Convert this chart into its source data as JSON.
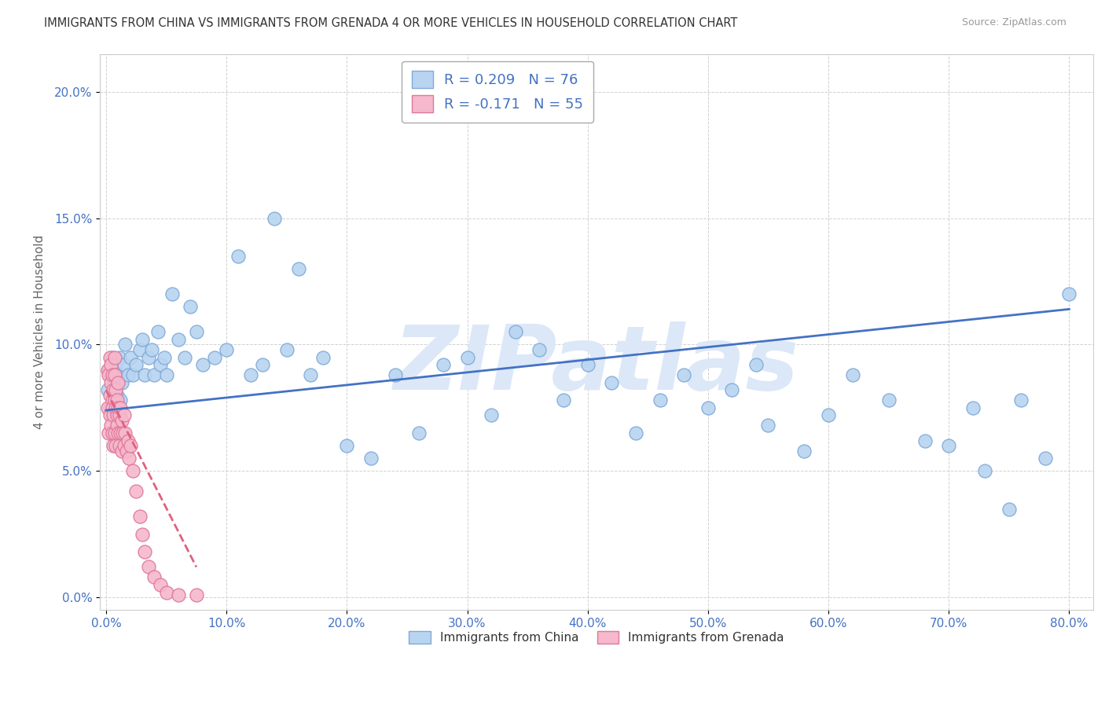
{
  "title": "IMMIGRANTS FROM CHINA VS IMMIGRANTS FROM GRENADA 4 OR MORE VEHICLES IN HOUSEHOLD CORRELATION CHART",
  "source": "Source: ZipAtlas.com",
  "ylabel": "4 or more Vehicles in Household",
  "legend_china": "Immigrants from China",
  "legend_grenada": "Immigrants from Grenada",
  "R_china": 0.209,
  "N_china": 76,
  "R_grenada": -0.171,
  "N_grenada": 55,
  "china_color": "#b8d4f0",
  "china_edge": "#80aad8",
  "grenada_color": "#f5b8cc",
  "grenada_edge": "#e0789a",
  "line_china_color": "#4472c4",
  "line_grenada_color": "#e06080",
  "xlim_min": -0.005,
  "xlim_max": 0.82,
  "ylim_min": -0.005,
  "ylim_max": 0.215,
  "xticks": [
    0.0,
    0.1,
    0.2,
    0.3,
    0.4,
    0.5,
    0.6,
    0.7,
    0.8
  ],
  "yticks": [
    0.0,
    0.05,
    0.1,
    0.15,
    0.2
  ],
  "xticklabels": [
    "0.0%",
    "10.0%",
    "20.0%",
    "30.0%",
    "40.0%",
    "50.0%",
    "60.0%",
    "70.0%",
    "80.0%"
  ],
  "yticklabels": [
    "0.0%",
    "5.0%",
    "10.0%",
    "15.0%",
    "20.0%"
  ],
  "china_line_x0": 0.0,
  "china_line_y0": 0.074,
  "china_line_x1": 0.8,
  "china_line_y1": 0.114,
  "grenada_line_x0": 0.0,
  "grenada_line_y0": 0.082,
  "grenada_line_x1": 0.075,
  "grenada_line_y1": 0.012,
  "watermark": "ZIPatlas",
  "watermark_color": "#dce8f8",
  "background_color": "#ffffff",
  "grid_color": "#cccccc",
  "china_scatter_x": [
    0.001,
    0.002,
    0.003,
    0.004,
    0.005,
    0.006,
    0.007,
    0.008,
    0.009,
    0.01,
    0.011,
    0.012,
    0.013,
    0.015,
    0.016,
    0.018,
    0.02,
    0.022,
    0.025,
    0.028,
    0.03,
    0.032,
    0.035,
    0.038,
    0.04,
    0.043,
    0.045,
    0.048,
    0.05,
    0.055,
    0.06,
    0.065,
    0.07,
    0.075,
    0.08,
    0.09,
    0.1,
    0.11,
    0.12,
    0.13,
    0.14,
    0.15,
    0.16,
    0.17,
    0.18,
    0.2,
    0.22,
    0.24,
    0.26,
    0.28,
    0.3,
    0.32,
    0.34,
    0.36,
    0.38,
    0.4,
    0.42,
    0.44,
    0.46,
    0.48,
    0.5,
    0.52,
    0.54,
    0.55,
    0.58,
    0.6,
    0.62,
    0.65,
    0.68,
    0.7,
    0.72,
    0.73,
    0.75,
    0.76,
    0.78,
    0.8
  ],
  "china_scatter_y": [
    0.082,
    0.09,
    0.075,
    0.088,
    0.095,
    0.078,
    0.085,
    0.092,
    0.08,
    0.088,
    0.095,
    0.078,
    0.085,
    0.092,
    0.1,
    0.088,
    0.095,
    0.088,
    0.092,
    0.098,
    0.102,
    0.088,
    0.095,
    0.098,
    0.088,
    0.105,
    0.092,
    0.095,
    0.088,
    0.12,
    0.102,
    0.095,
    0.115,
    0.105,
    0.092,
    0.095,
    0.098,
    0.135,
    0.088,
    0.092,
    0.15,
    0.098,
    0.13,
    0.088,
    0.095,
    0.06,
    0.055,
    0.088,
    0.065,
    0.092,
    0.095,
    0.072,
    0.105,
    0.098,
    0.078,
    0.092,
    0.085,
    0.065,
    0.078,
    0.088,
    0.075,
    0.082,
    0.092,
    0.068,
    0.058,
    0.072,
    0.088,
    0.078,
    0.062,
    0.06,
    0.075,
    0.05,
    0.035,
    0.078,
    0.055,
    0.12
  ],
  "grenada_scatter_x": [
    0.001,
    0.001,
    0.002,
    0.002,
    0.003,
    0.003,
    0.003,
    0.004,
    0.004,
    0.004,
    0.005,
    0.005,
    0.005,
    0.005,
    0.006,
    0.006,
    0.006,
    0.007,
    0.007,
    0.007,
    0.007,
    0.008,
    0.008,
    0.008,
    0.009,
    0.009,
    0.009,
    0.01,
    0.01,
    0.01,
    0.011,
    0.011,
    0.012,
    0.012,
    0.013,
    0.013,
    0.014,
    0.015,
    0.015,
    0.016,
    0.017,
    0.018,
    0.019,
    0.02,
    0.022,
    0.025,
    0.028,
    0.03,
    0.032,
    0.035,
    0.04,
    0.045,
    0.05,
    0.06,
    0.075
  ],
  "grenada_scatter_y": [
    0.09,
    0.075,
    0.088,
    0.065,
    0.095,
    0.08,
    0.072,
    0.085,
    0.068,
    0.092,
    0.078,
    0.088,
    0.065,
    0.075,
    0.082,
    0.072,
    0.06,
    0.088,
    0.078,
    0.065,
    0.095,
    0.075,
    0.082,
    0.06,
    0.078,
    0.068,
    0.072,
    0.075,
    0.085,
    0.065,
    0.072,
    0.06,
    0.075,
    0.065,
    0.07,
    0.058,
    0.065,
    0.072,
    0.06,
    0.065,
    0.058,
    0.062,
    0.055,
    0.06,
    0.05,
    0.042,
    0.032,
    0.025,
    0.018,
    0.012,
    0.008,
    0.005,
    0.002,
    0.001,
    0.001
  ]
}
